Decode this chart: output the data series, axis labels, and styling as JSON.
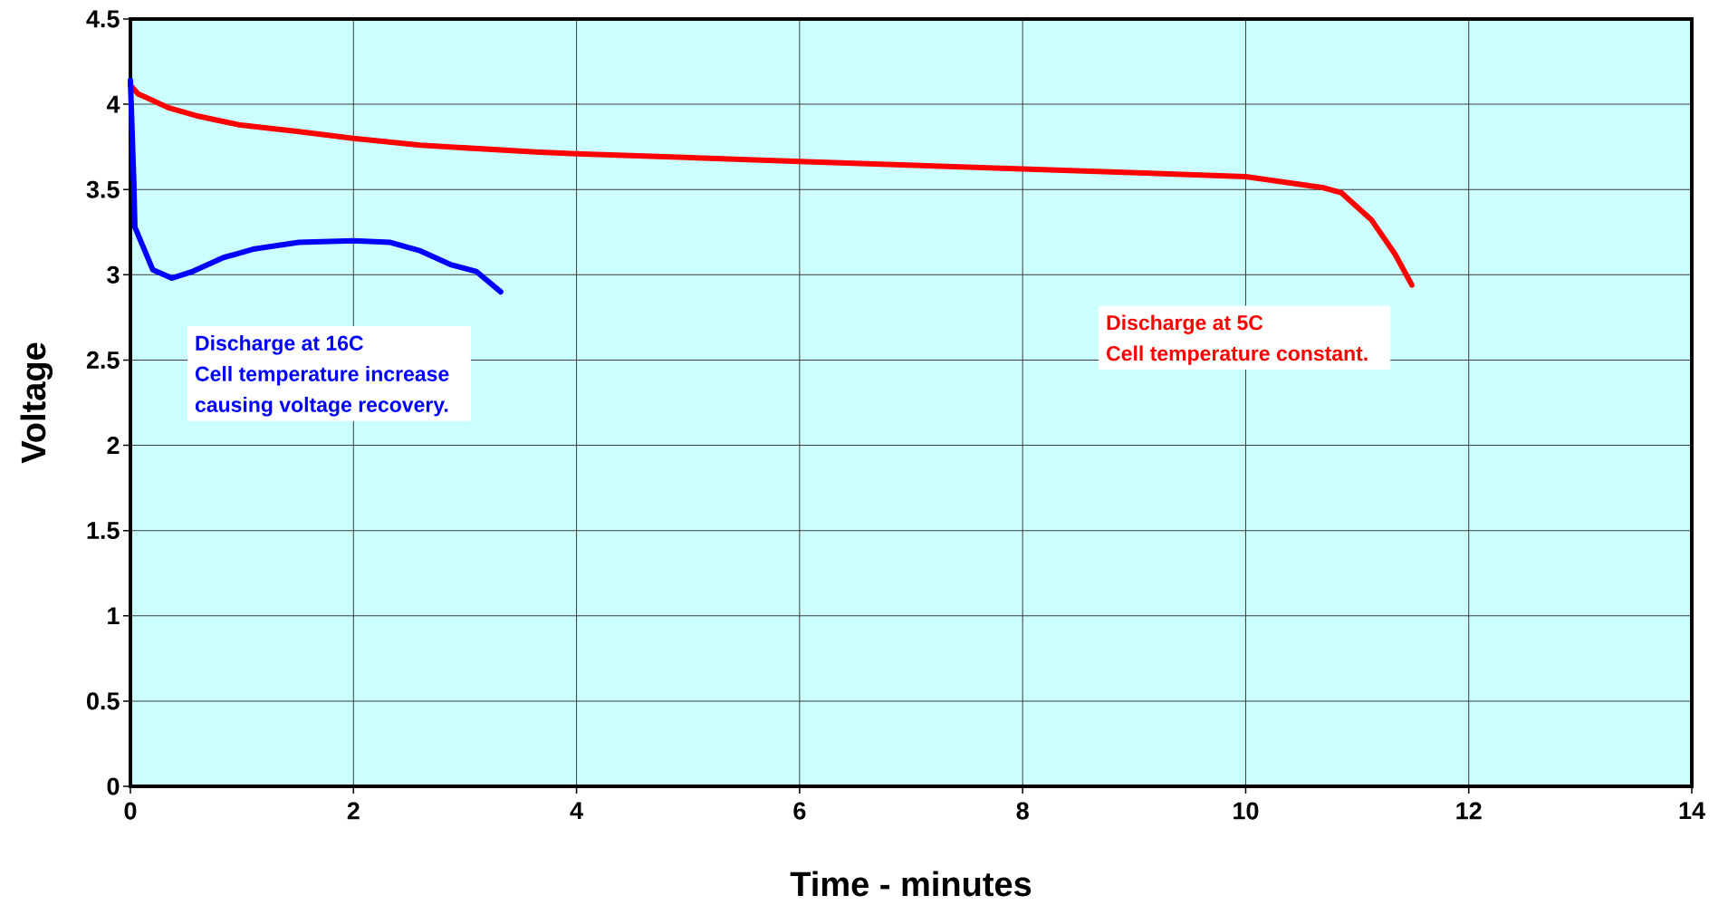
{
  "chart_data": {
    "type": "line",
    "xlabel": "Time - minutes",
    "ylabel": "Voltage",
    "xlim": [
      0,
      14
    ],
    "xticks": [
      0,
      2,
      4,
      6,
      8,
      10,
      12,
      14
    ],
    "ylim": [
      0,
      4.5
    ],
    "yticks": [
      0,
      0.5,
      1,
      1.5,
      2,
      2.5,
      3,
      3.5,
      4,
      4.5
    ],
    "grid": true,
    "marker": "none",
    "line_style": "solid",
    "series": [
      {
        "color": "#ff0000",
        "x": [
          0,
          0.07,
          0.14,
          0.34,
          0.61,
          0.97,
          1.51,
          2.0,
          2.6,
          3.63,
          4,
          6,
          8,
          8.97,
          10,
          10.7,
          10.86,
          11.13,
          11.34,
          11.49
        ],
        "values": [
          4.11,
          4.06,
          4.04,
          3.98,
          3.93,
          3.88,
          3.84,
          3.8,
          3.76,
          3.72,
          3.71,
          3.665,
          3.62,
          3.6,
          3.575,
          3.51,
          3.48,
          3.32,
          3.12,
          2.94
        ]
      },
      {
        "color": "#0000ff",
        "x": [
          0,
          0.03,
          0.04,
          0.2,
          0.37,
          0.56,
          0.83,
          1.1,
          1.51,
          2.0,
          2.33,
          2.6,
          2.87,
          3.1,
          3.32
        ],
        "values": [
          4.14,
          3.55,
          3.28,
          3.03,
          2.98,
          3.02,
          3.1,
          3.15,
          3.19,
          3.2,
          3.19,
          3.14,
          3.06,
          3.02,
          2.9
        ]
      }
    ],
    "annotations": [
      "Discharge at 16C",
      "Cell temperature increase",
      "causing voltage recovery.",
      "Discharge at 5C",
      "Cell temperature constant."
    ]
  }
}
